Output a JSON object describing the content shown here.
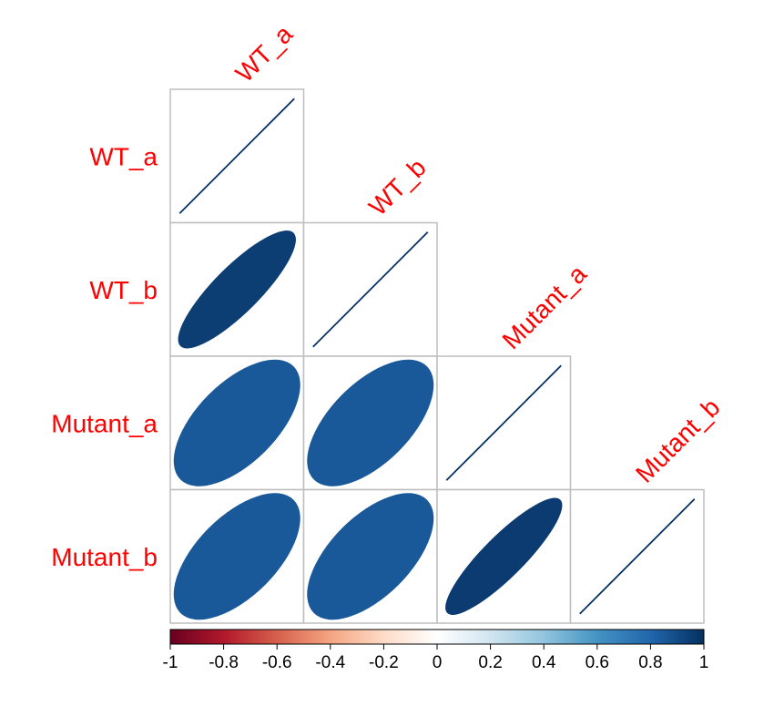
{
  "chart_data": {
    "type": "heatmap",
    "title": "",
    "variables": [
      "WT_a",
      "WT_b",
      "Mutant_a",
      "Mutant_b"
    ],
    "matrix": [
      [
        1.0,
        0.95,
        0.85,
        0.85
      ],
      [
        0.95,
        1.0,
        0.85,
        0.85
      ],
      [
        0.85,
        0.85,
        1.0,
        0.96
      ],
      [
        0.85,
        0.85,
        0.96,
        1.0
      ]
    ],
    "display": "lower triangle, ellipses",
    "colorbar": {
      "range": [
        -1,
        1
      ],
      "ticks": [
        "-1",
        "-0.8",
        "-0.6",
        "-0.4",
        "-0.2",
        "0",
        "0.2",
        "0.4",
        "0.6",
        "0.8",
        "1"
      ]
    },
    "colors": {
      "label": "#ff0000",
      "grid": "#bebebe",
      "scale": [
        "#67001f",
        "#b2182b",
        "#d6604d",
        "#f4a582",
        "#fddbc7",
        "#ffffff",
        "#d1e5f0",
        "#92c5de",
        "#4393c3",
        "#2166ac",
        "#053061"
      ]
    }
  }
}
